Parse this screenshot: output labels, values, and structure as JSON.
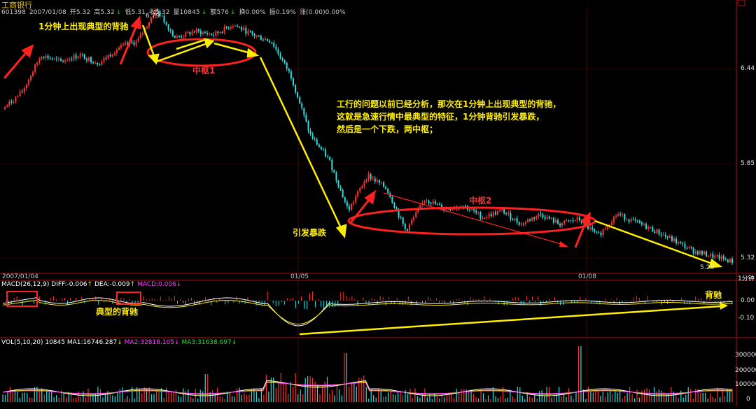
{
  "header": {
    "stock_name": "工商银行",
    "code": "601398",
    "date": "2007/01/08",
    "open": "开5.32",
    "high": "高5.32",
    "low": "低5.31",
    "close": "收5.32",
    "volume": "量10845",
    "amount": "额576",
    "turnover": "换0.00%",
    "amplitude": "振0.19%",
    "change": "涨(0.00)0.00%"
  },
  "price_axis": {
    "labels": [
      "6.44",
      "5.85",
      "5.32"
    ],
    "high_mark": "6.79",
    "low_mark": "5.28"
  },
  "time_axis": {
    "labels": [
      "2007/01/04",
      "01/05",
      "01/08"
    ],
    "period": "1分钟"
  },
  "annotations": {
    "top_left": "1分钟上出现典型的背驰",
    "zhongshu1": "中枢1",
    "zhongshu2": "中枢2",
    "crash": "引发暴跌",
    "paragraph": [
      "工行的问题以前已经分析，那次在1分钟上出现典型的背驰，",
      "这就是急速行情中最典型的特征，1分钟背驰引发暴跌，",
      "然后是一个下跌，两中枢；"
    ],
    "macd_typical": "典型的背驰",
    "macd_divergence": "背驰"
  },
  "macd": {
    "title": "MACD(26,12,9)",
    "diff": "DIFF:-0.006",
    "dea": "DEA:-0.009",
    "macd": "MACD:0.006",
    "axis": [
      "0.00",
      "-0.10"
    ]
  },
  "vol": {
    "title": "VOL(5,10,20)",
    "value": "10845",
    "ma1": "MA1:16746.287",
    "ma2": "MA2:32818.105",
    "ma3": "MA3:31638.697",
    "axis": [
      "300000",
      "200000",
      "100000",
      "0"
    ]
  },
  "colors": {
    "up": "#ff3030",
    "down": "#2adfdf",
    "annotation_yellow": "#ffee00",
    "annotation_red": "#ff2020",
    "grid_red": "#a01010"
  },
  "chart_data": {
    "type": "line",
    "title": "工商银行",
    "price_ylim": [
      5.28,
      6.79
    ],
    "price_ticks": [
      6.44,
      5.85,
      5.32
    ],
    "x": [
      "2007/01/04",
      "01/05",
      "01/08"
    ],
    "price_path": [
      {
        "t": 0,
        "p": 6.2
      },
      {
        "t": 1,
        "p": 6.3
      },
      {
        "t": 2,
        "p": 6.52
      },
      {
        "t": 3,
        "p": 6.48
      },
      {
        "t": 4,
        "p": 6.52
      },
      {
        "t": 5,
        "p": 6.47
      },
      {
        "t": 6,
        "p": 6.56
      },
      {
        "t": 7,
        "p": 6.6
      },
      {
        "t": 8,
        "p": 6.79
      },
      {
        "t": 9,
        "p": 6.62
      },
      {
        "t": 10,
        "p": 6.66
      },
      {
        "t": 11,
        "p": 6.64
      },
      {
        "t": 12,
        "p": 6.7
      },
      {
        "t": 13,
        "p": 6.64
      },
      {
        "t": 14,
        "p": 6.6
      },
      {
        "t": 15,
        "p": 6.4
      },
      {
        "t": 16,
        "p": 6.05
      },
      {
        "t": 17,
        "p": 5.9
      },
      {
        "t": 18,
        "p": 5.6
      },
      {
        "t": 19,
        "p": 5.81
      },
      {
        "t": 20,
        "p": 5.73
      },
      {
        "t": 21,
        "p": 5.48
      },
      {
        "t": 22,
        "p": 5.67
      },
      {
        "t": 23,
        "p": 5.61
      },
      {
        "t": 24,
        "p": 5.63
      },
      {
        "t": 25,
        "p": 5.56
      },
      {
        "t": 26,
        "p": 5.6
      },
      {
        "t": 27,
        "p": 5.52
      },
      {
        "t": 28,
        "p": 5.58
      },
      {
        "t": 29,
        "p": 5.52
      },
      {
        "t": 30,
        "p": 5.55
      },
      {
        "t": 31,
        "p": 5.45
      },
      {
        "t": 32,
        "p": 5.58
      },
      {
        "t": 33,
        "p": 5.53
      },
      {
        "t": 34,
        "p": 5.48
      },
      {
        "t": 35,
        "p": 5.42
      },
      {
        "t": 36,
        "p": 5.36
      },
      {
        "t": 37,
        "p": 5.33
      },
      {
        "t": 38,
        "p": 5.3
      }
    ]
  }
}
